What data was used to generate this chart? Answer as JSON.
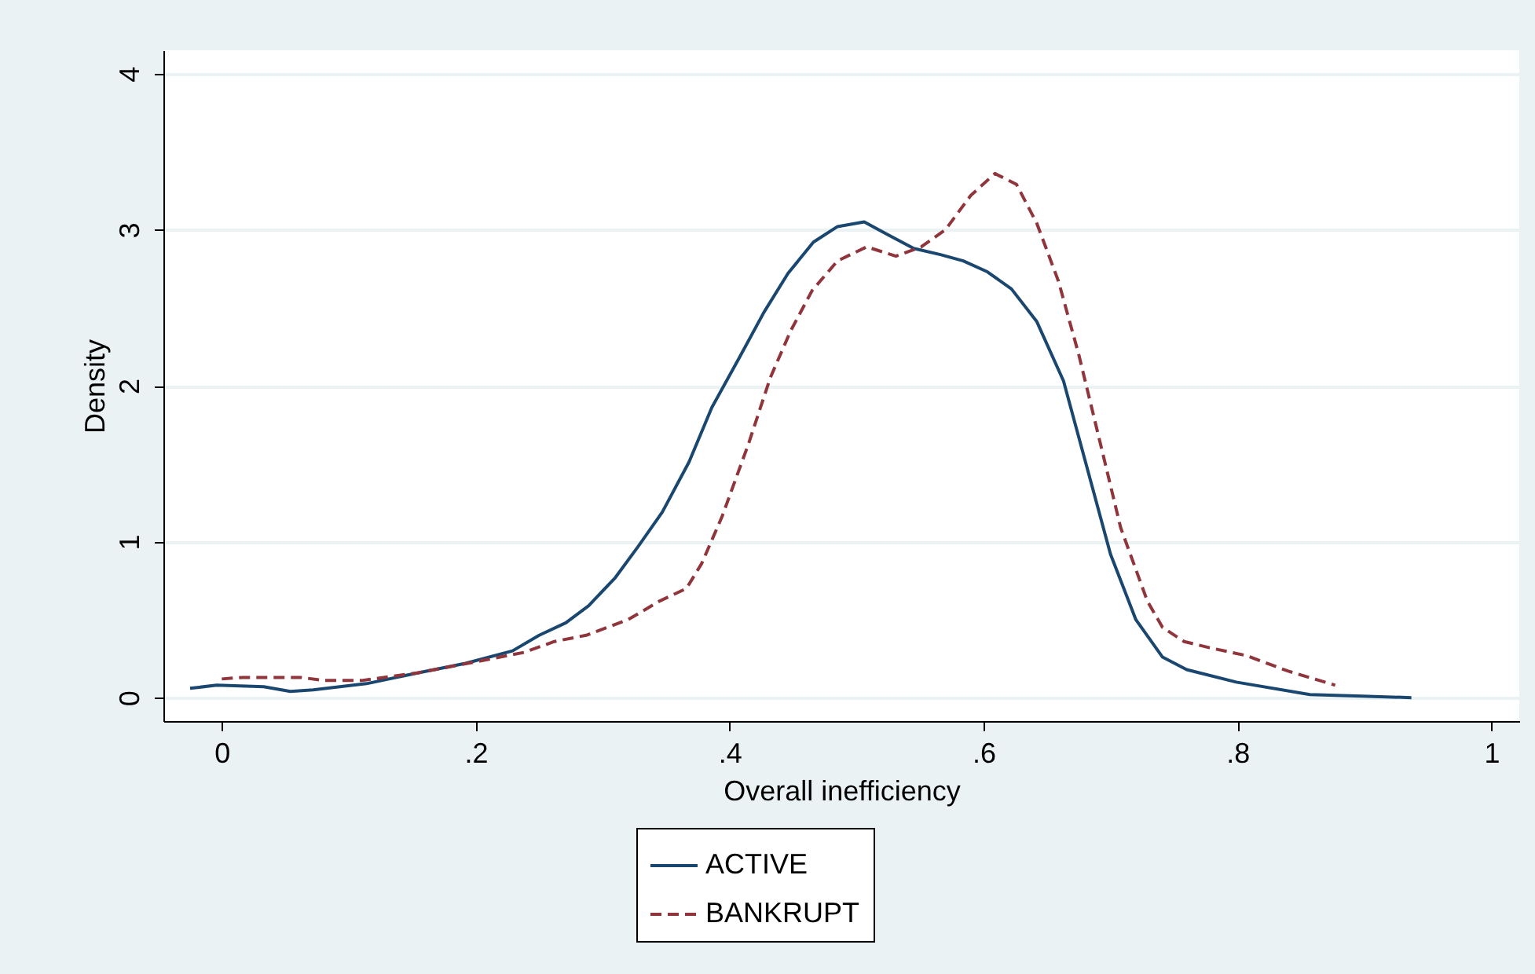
{
  "chart_data": {
    "type": "line",
    "xlabel": "Overall inefficiency",
    "ylabel": "Density",
    "xlim": [
      -0.046,
      1.022
    ],
    "xticks": [
      {
        "value": 0,
        "label": "0"
      },
      {
        "value": 0.2,
        "label": ".2"
      },
      {
        "value": 0.4,
        "label": ".4"
      },
      {
        "value": 0.6,
        "label": ".6"
      },
      {
        "value": 0.8,
        "label": ".8"
      },
      {
        "value": 1,
        "label": "1"
      }
    ],
    "ylim": [
      -0.15,
      4.15
    ],
    "yticks": [
      0,
      1,
      2,
      3,
      4
    ],
    "grid": "y",
    "legend": "bottom",
    "series": [
      {
        "name": "ACTIVE",
        "color": "#1a476f",
        "line_style": "solid",
        "x": [
          -0.025,
          -0.004,
          0.033,
          0.054,
          0.072,
          0.114,
          0.155,
          0.192,
          0.229,
          0.25,
          0.271,
          0.289,
          0.31,
          0.328,
          0.347,
          0.368,
          0.386,
          0.407,
          0.427,
          0.446,
          0.466,
          0.485,
          0.506,
          0.524,
          0.545,
          0.566,
          0.584,
          0.603,
          0.622,
          0.642,
          0.663,
          0.681,
          0.7,
          0.72,
          0.741,
          0.76,
          0.799,
          0.857,
          0.898,
          0.937
        ],
        "values": [
          0.06,
          0.08,
          0.07,
          0.04,
          0.05,
          0.09,
          0.16,
          0.22,
          0.3,
          0.4,
          0.48,
          0.59,
          0.77,
          0.97,
          1.19,
          1.51,
          1.86,
          2.17,
          2.47,
          2.72,
          2.92,
          3.02,
          3.05,
          2.97,
          2.88,
          2.84,
          2.8,
          2.73,
          2.62,
          2.41,
          2.03,
          1.49,
          0.92,
          0.5,
          0.26,
          0.18,
          0.1,
          0.02,
          0.01,
          0
        ]
      },
      {
        "name": "BANKRUPT",
        "color": "#90353b",
        "line_style": "dashed",
        "x": [
          0,
          0.017,
          0.062,
          0.081,
          0.11,
          0.155,
          0.2,
          0.238,
          0.262,
          0.287,
          0.32,
          0.345,
          0.366,
          0.378,
          0.394,
          0.415,
          0.432,
          0.448,
          0.465,
          0.485,
          0.508,
          0.531,
          0.551,
          0.57,
          0.59,
          0.609,
          0.626,
          0.642,
          0.659,
          0.675,
          0.692,
          0.708,
          0.729,
          0.741,
          0.758,
          0.778,
          0.807,
          0.84,
          0.877
        ],
        "values": [
          0.12,
          0.13,
          0.13,
          0.11,
          0.11,
          0.16,
          0.23,
          0.29,
          0.36,
          0.4,
          0.5,
          0.62,
          0.7,
          0.86,
          1.16,
          1.63,
          2.05,
          2.35,
          2.61,
          2.8,
          2.89,
          2.83,
          2.89,
          3,
          3.22,
          3.36,
          3.29,
          3.04,
          2.67,
          2.2,
          1.63,
          1.09,
          0.62,
          0.45,
          0.36,
          0.32,
          0.27,
          0.17,
          0.08
        ]
      }
    ]
  }
}
